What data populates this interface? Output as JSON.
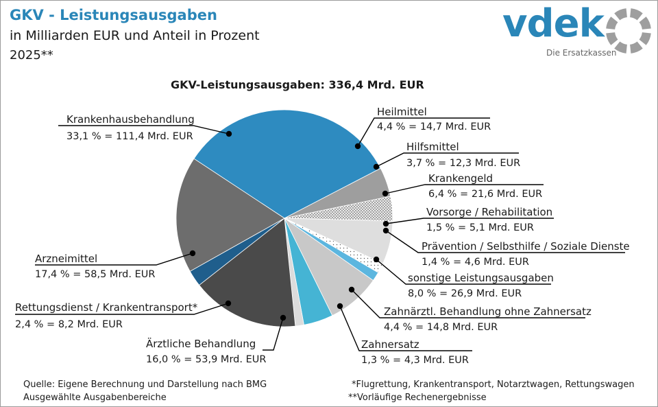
{
  "header": {
    "title": "GKV - Leistungsausgaben",
    "subtitle": "in Milliarden EUR und Anteil in Prozent",
    "year": "2025**"
  },
  "logo": {
    "name": "vdek",
    "tagline": "Die Ersatzkassen",
    "color": "#2a86b8",
    "ring_color": "#9e9e9e"
  },
  "total_label": "GKV-Leistungsausgaben: 336,4 Mrd. EUR",
  "footer": {
    "source": "Quelle: Eigene Berechnung und Darstellung nach BMG",
    "selection": "Ausgewählte Ausgabenbereiche",
    "note1": "*Flugrettung, Krankentransport, Notarztwagen, Rettungswagen",
    "note2": "**Vorläufige Rechenergebnisse"
  },
  "chart_data": {
    "type": "pie",
    "title": "GKV-Leistungsausgaben: 336,4 Mrd. EUR",
    "unit": "Mrd. EUR",
    "slices": [
      {
        "name": "Krankenhausbehandlung",
        "percent": 33.1,
        "value": 111.4,
        "value_label": "33,1 % = 111,4 Mrd. EUR",
        "color": "#2e8bc0"
      },
      {
        "name": "Heilmittel",
        "percent": 4.4,
        "value": 14.7,
        "value_label": "4,4 % = 14,7 Mrd. EUR",
        "color": "#9e9e9e"
      },
      {
        "name": "Hilfsmittel",
        "percent": 3.7,
        "value": 12.3,
        "value_label": "3,7 % = 12,3 Mrd. EUR",
        "color": "#e0e0e0",
        "pattern": "dots-dense"
      },
      {
        "name": "Krankengeld",
        "percent": 6.4,
        "value": 21.6,
        "value_label": "6,4 % = 21,6 Mrd. EUR",
        "color": "#dedede"
      },
      {
        "name": "Vorsorge / Rehabilitation",
        "percent": 1.5,
        "value": 5.1,
        "value_label": "1,5 % = 5,1 Mrd. EUR",
        "color": "#ffffff",
        "pattern": "dots-sparse"
      },
      {
        "name": "Prävention / Selbsthilfe / Soziale Dienste",
        "percent": 1.4,
        "value": 4.6,
        "value_label": "1,4 % = 4,6 Mrd. EUR",
        "color": "#5cb6df"
      },
      {
        "name": "sonstige Leistungsausgaben",
        "percent": 8.0,
        "value": 26.9,
        "value_label": "8,0 % = 26,9 Mrd. EUR",
        "color": "#c8c8c8"
      },
      {
        "name": "Zahnärztl. Behandlung ohne Zahnersatz",
        "percent": 4.4,
        "value": 14.8,
        "value_label": "4,4 % = 14,8 Mrd. EUR",
        "color": "#45b4d4"
      },
      {
        "name": "Zahnersatz",
        "percent": 1.3,
        "value": 4.3,
        "value_label": "1,3 % = 4,3 Mrd. EUR",
        "color": "#dcdcdc"
      },
      {
        "name": "Ärztliche Behandlung",
        "percent": 16.0,
        "value": 53.9,
        "value_label": "16,0 % = 53,9 Mrd. EUR",
        "color": "#4a4a4a"
      },
      {
        "name": "Rettungsdienst / Krankentransport*",
        "percent": 2.4,
        "value": 8.2,
        "value_label": "2,4 % = 8,2 Mrd. EUR",
        "color": "#1f5e8c"
      },
      {
        "name": "Arzneimittel",
        "percent": 17.4,
        "value": 58.5,
        "value_label": "17,4 % = 58,5 Mrd. EUR",
        "color": "#6d6d6d"
      }
    ]
  }
}
